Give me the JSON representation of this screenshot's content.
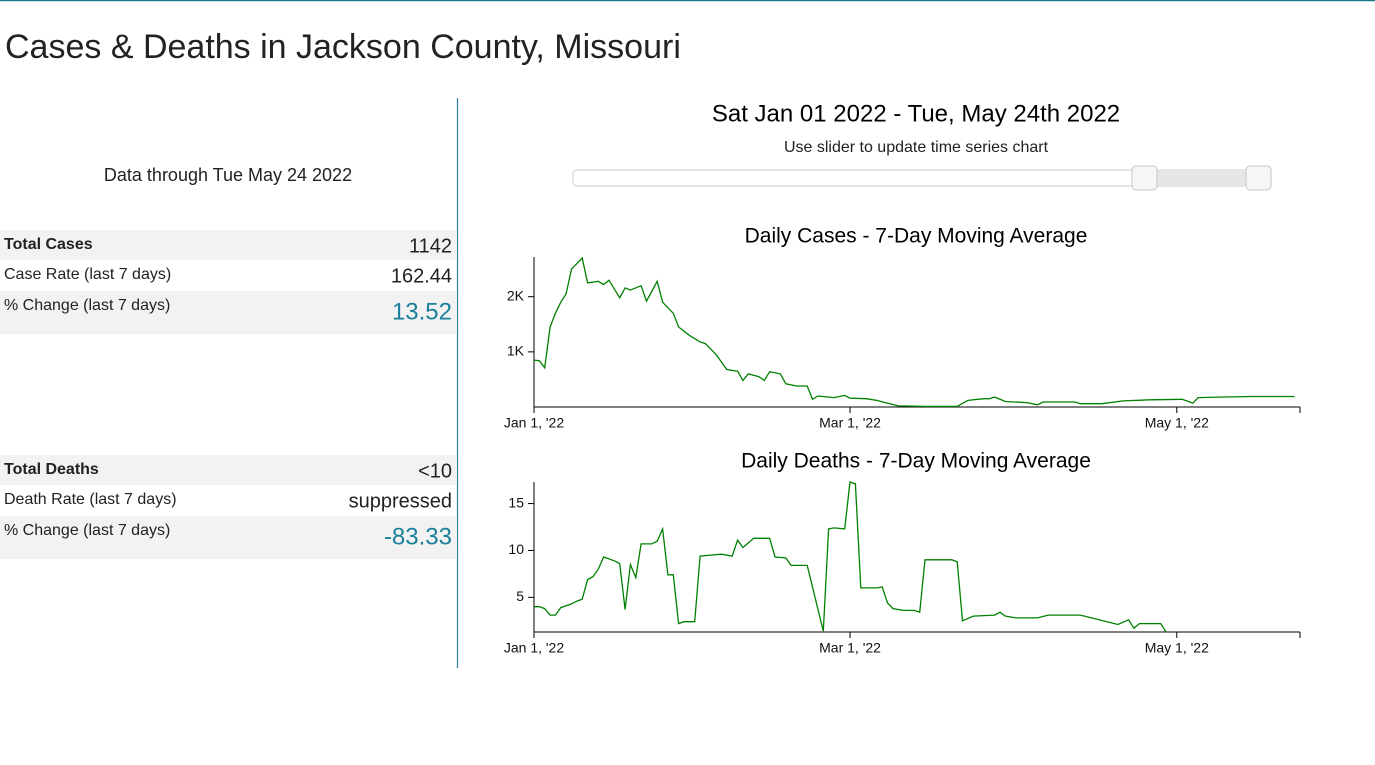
{
  "header": {
    "title": "Cases & Deaths in Jackson County, Missouri"
  },
  "summary": {
    "data_through": "Data through Tue May 24 2022",
    "date_range": "Sat Jan 01 2022 - Tue, May 24th 2022",
    "instruction": "Use slider to update time series chart"
  },
  "cases": [
    {
      "label": "Total Cases",
      "value": 1142
    },
    {
      "label": "Case Rate (last 7 days)",
      "value": 162.44
    },
    {
      "label": "% Change (last 7 days)",
      "value": 13.52
    }
  ],
  "deaths": [
    {
      "label": "Total Deaths",
      "value": "<10"
    },
    {
      "label": "Death Rate (last 7 days)",
      "value": "suppressed"
    },
    {
      "label": "% Change (last 7 days)",
      "value": -83.33
    }
  ],
  "chart_data": [
    {
      "type": "line",
      "title": "Daily Cases - 7-Day Moving Average",
      "color": "#008000",
      "x": [
        "2022-01-01",
        "2022-01-02",
        "2022-01-03",
        "2022-01-04",
        "2022-01-05",
        "2022-01-06",
        "2022-01-07",
        "2022-01-08",
        "2022-01-10",
        "2022-01-11",
        "2022-01-13",
        "2022-01-14",
        "2022-01-15",
        "2022-01-17",
        "2022-01-18",
        "2022-01-19",
        "2022-01-21",
        "2022-01-22",
        "2022-01-24",
        "2022-01-25",
        "2022-01-27",
        "2022-01-28",
        "2022-01-30",
        "2022-02-01",
        "2022-02-02",
        "2022-02-04",
        "2022-02-06",
        "2022-02-08",
        "2022-02-09",
        "2022-02-10",
        "2022-02-12",
        "2022-02-13",
        "2022-02-14",
        "2022-02-16",
        "2022-02-17",
        "2022-02-19",
        "2022-02-21",
        "2022-02-22",
        "2022-02-23",
        "2022-02-26",
        "2022-02-28",
        "2022-03-01",
        "2022-03-04",
        "2022-03-06",
        "2022-03-10",
        "2022-03-15",
        "2022-03-21",
        "2022-03-23",
        "2022-03-26",
        "2022-03-27",
        "2022-03-28",
        "2022-03-30",
        "2022-04-03",
        "2022-04-05",
        "2022-04-06",
        "2022-04-12",
        "2022-04-13",
        "2022-04-17",
        "2022-04-21",
        "2022-04-26",
        "2022-05-02",
        "2022-05-04",
        "2022-05-05",
        "2022-05-09",
        "2022-05-15",
        "2022-05-19",
        "2022-05-23"
      ],
      "values": [
        850,
        840,
        710,
        1450,
        1700,
        1900,
        2050,
        2500,
        2700,
        2250,
        2280,
        2220,
        2300,
        1980,
        2160,
        2120,
        2200,
        1920,
        2280,
        1900,
        1700,
        1450,
        1300,
        1180,
        1150,
        950,
        680,
        650,
        480,
        600,
        550,
        480,
        640,
        600,
        420,
        380,
        380,
        140,
        200,
        170,
        210,
        160,
        150,
        120,
        20,
        10,
        10,
        120,
        150,
        150,
        180,
        100,
        80,
        40,
        90,
        90,
        60,
        60,
        110,
        130,
        140,
        70,
        170,
        180,
        190,
        190,
        190
      ],
      "xlim": [
        "2022-01-01",
        "2022-05-24"
      ],
      "xticks": [
        {
          "value": "2022-01-01",
          "label": "Jan 1, '22"
        },
        {
          "value": "2022-03-01",
          "label": "Mar 1, '22"
        },
        {
          "value": "2022-05-01",
          "label": "May 1, '22"
        }
      ],
      "ylim": [
        0,
        2720
      ],
      "yticks": [
        {
          "value": 1000,
          "label": "1K"
        },
        {
          "value": 2000,
          "label": "2K"
        }
      ]
    },
    {
      "type": "line",
      "title": "Daily Deaths - 7-Day Moving Average",
      "color": "#008000",
      "x": [
        "2022-01-01",
        "2022-01-02",
        "2022-01-03",
        "2022-01-04",
        "2022-01-05",
        "2022-01-06",
        "2022-01-08",
        "2022-01-09",
        "2022-01-10",
        "2022-01-11",
        "2022-01-12",
        "2022-01-13",
        "2022-01-14",
        "2022-01-16",
        "2022-01-17",
        "2022-01-18",
        "2022-01-19",
        "2022-01-20",
        "2022-01-21",
        "2022-01-23",
        "2022-01-24",
        "2022-01-25",
        "2022-01-26",
        "2022-01-27",
        "2022-01-28",
        "2022-01-29",
        "2022-01-31",
        "2022-02-01",
        "2022-02-03",
        "2022-02-05",
        "2022-02-07",
        "2022-02-08",
        "2022-02-09",
        "2022-02-11",
        "2022-02-14",
        "2022-02-15",
        "2022-02-17",
        "2022-02-18",
        "2022-02-21",
        "2022-02-24",
        "2022-02-25",
        "2022-02-26",
        "2022-02-28",
        "2022-03-01",
        "2022-03-02",
        "2022-03-03",
        "2022-03-06",
        "2022-03-07",
        "2022-03-08",
        "2022-03-09",
        "2022-03-11",
        "2022-03-13",
        "2022-03-14",
        "2022-03-15",
        "2022-03-20",
        "2022-03-21",
        "2022-03-22",
        "2022-03-24",
        "2022-03-28",
        "2022-03-29",
        "2022-03-30",
        "2022-04-01",
        "2022-04-05",
        "2022-04-07",
        "2022-04-13",
        "2022-04-20",
        "2022-04-22",
        "2022-04-23",
        "2022-04-24",
        "2022-04-28",
        "2022-04-29"
      ],
      "values": [
        4.0,
        4.0,
        3.8,
        3.1,
        3.1,
        3.9,
        4.3,
        4.6,
        4.8,
        6.9,
        7.2,
        8.0,
        9.3,
        8.9,
        8.6,
        3.7,
        8.5,
        7.1,
        10.7,
        10.7,
        11.0,
        12.3,
        7.4,
        7.4,
        2.2,
        2.4,
        2.4,
        9.4,
        9.5,
        9.6,
        9.4,
        11.1,
        10.3,
        11.3,
        11.3,
        9.3,
        9.2,
        8.4,
        8.4,
        1.4,
        12.3,
        12.4,
        12.3,
        17.3,
        17.1,
        6.0,
        6.0,
        6.1,
        4.4,
        3.8,
        3.6,
        3.6,
        3.4,
        9.0,
        9.0,
        8.8,
        2.5,
        3.0,
        3.1,
        3.4,
        3.0,
        2.8,
        2.8,
        3.1,
        3.1,
        2.1,
        2.6,
        1.7,
        2.2,
        2.2,
        1.3
      ],
      "xlim": [
        "2022-01-01",
        "2022-05-24"
      ],
      "xticks": [
        {
          "value": "2022-01-01",
          "label": "Jan 1, '22"
        },
        {
          "value": "2022-03-01",
          "label": "Mar 1, '22"
        },
        {
          "value": "2022-05-01",
          "label": "May 1, '22"
        }
      ],
      "ylim": [
        1.3,
        17.3
      ],
      "yticks": [
        5,
        10,
        15
      ]
    }
  ]
}
